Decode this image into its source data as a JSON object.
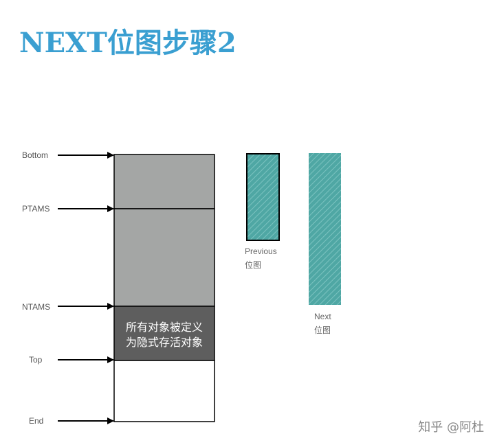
{
  "title": "NEXT位图步骤2",
  "pointers": {
    "bottom": "Bottom",
    "ptams": "PTAMS",
    "ntams": "NTAMS",
    "top": "Top",
    "end": "End"
  },
  "region_text": {
    "line1": "所有对象被定义",
    "line2": "为隐式存活对象"
  },
  "bitmaps": {
    "previous": {
      "line1": "Previous",
      "line2": "位图"
    },
    "next": {
      "line1": "Next",
      "line2": "位图"
    }
  },
  "watermark": "知乎 @阿杜",
  "colors": {
    "title": "#3a9fd1",
    "marked_region": "#a4a6a5",
    "live_region": "#5e5e5e",
    "bitmap": "#4fa7a4"
  }
}
